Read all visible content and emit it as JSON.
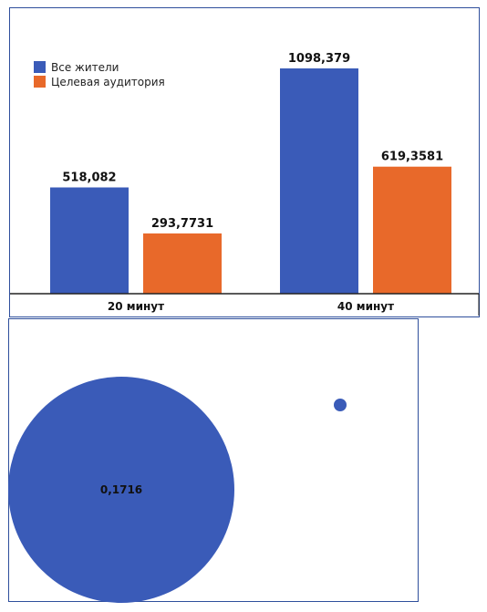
{
  "colors": {
    "series1": "#3a5bb8",
    "series2": "#e8692a",
    "axis": "#222222",
    "frame": "#2f4f9c"
  },
  "chart_data": [
    {
      "type": "bar",
      "categories": [
        "20 минут",
        "40 минут"
      ],
      "series": [
        {
          "name": "Все жители",
          "values": [
            518.082,
            1098.379
          ],
          "labels": [
            "518,082",
            "1098,379"
          ],
          "color": "#3a5bb8"
        },
        {
          "name": "Целевая аудитория",
          "values": [
            293.7731,
            619.3581
          ],
          "labels": [
            "293,7731",
            "619,3581"
          ],
          "color": "#e8692a"
        }
      ],
      "ylim": [
        0,
        1200
      ],
      "grid": false,
      "legend": "top-left"
    },
    {
      "type": "scatter",
      "points": [
        {
          "label": "0,1716",
          "size": 0.1716,
          "color": "#3a5bb8"
        },
        {
          "label": "",
          "size": 0.0005,
          "color": "#3a5bb8"
        }
      ],
      "grid": false
    }
  ]
}
